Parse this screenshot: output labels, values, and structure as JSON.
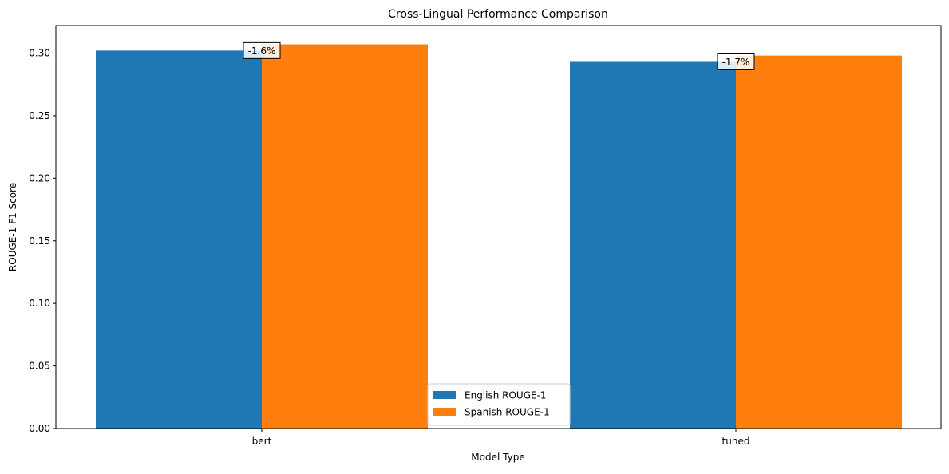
{
  "chart_data": {
    "type": "bar",
    "title": "Cross-Lingual Performance Comparison",
    "xlabel": "Model Type",
    "ylabel": "ROUGE-1 F1 Score",
    "categories": [
      "bert",
      "tuned"
    ],
    "series": [
      {
        "name": "English ROUGE-1",
        "color": "#1f77b4",
        "values": [
          0.302,
          0.293
        ]
      },
      {
        "name": "Spanish ROUGE-1",
        "color": "#ff7f0e",
        "values": [
          0.307,
          0.298
        ]
      }
    ],
    "ylim": [
      0,
      0.322
    ],
    "yticks": [
      0.0,
      0.05,
      0.1,
      0.15,
      0.2,
      0.25,
      0.3
    ],
    "ytick_labels": [
      "0.00",
      "0.05",
      "0.10",
      "0.15",
      "0.20",
      "0.25",
      "0.30"
    ],
    "annotations": [
      {
        "category": "bert",
        "text": "-1.6%",
        "y": 0.302
      },
      {
        "category": "tuned",
        "text": "-1.7%",
        "y": 0.293
      }
    ],
    "grid": false,
    "legend_position": "bottom-center"
  }
}
